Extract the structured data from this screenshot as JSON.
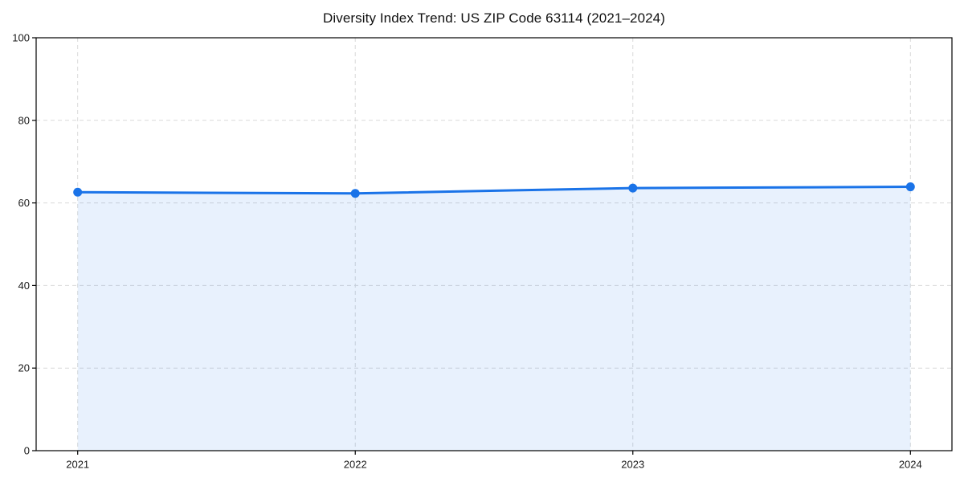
{
  "chart_data": {
    "type": "area",
    "title": "Diversity Index Trend: US ZIP Code 63114 (2021–2024)",
    "x": [
      "2021",
      "2022",
      "2023",
      "2024"
    ],
    "series": [
      {
        "name": "Diversity Index",
        "values": [
          62.6,
          62.3,
          63.6,
          63.9
        ]
      }
    ],
    "xlabel": "",
    "ylabel": "",
    "ylim": [
      0,
      100
    ],
    "yticks": [
      0,
      20,
      40,
      60,
      80,
      100
    ],
    "grid": true,
    "grid_style": "dashed",
    "legend": "none",
    "colors": {
      "line": "#1a73e8",
      "marker": "#1a73e8",
      "fill": "rgba(26,115,232,0.10)",
      "gridline": "#d9d9d9",
      "spine": "#000000",
      "tick_label": "#1a1a1a",
      "title": "#111111",
      "background": "#ffffff"
    }
  }
}
